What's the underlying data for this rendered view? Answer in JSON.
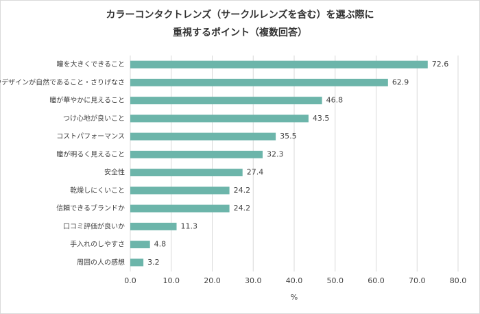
{
  "chart_data": {
    "type": "hbar",
    "title": [
      "カラーコンタクトレンズ（サークルレンズを含む）を選ぶ際に",
      "重視するポイント（複数回答）"
    ],
    "categories": [
      "瞳を大きくできること",
      "色やデザインが自然であること・さりげなさ",
      "瞳が華やかに見えること",
      "つけ心地が良いこと",
      "コストパフォーマンス",
      "瞳が明るく見えること",
      "安全性",
      "乾燥しにくいこと",
      "信頼できるブランドか",
      "口コミ評価が良いか",
      "手入れのしやすさ",
      "周囲の人の感想"
    ],
    "values": [
      72.6,
      62.9,
      46.8,
      43.5,
      35.5,
      32.3,
      27.4,
      24.2,
      24.2,
      11.3,
      4.8,
      3.2
    ],
    "color": "#6cb5aa",
    "xlabel": "%",
    "xlim": [
      0,
      80
    ],
    "xticks": [
      {
        "value": 0,
        "label": "0.0"
      },
      {
        "value": 10,
        "label": "10.0"
      },
      {
        "value": 20,
        "label": "20.0"
      },
      {
        "value": 30,
        "label": "30.0"
      },
      {
        "value": 40,
        "label": "40.0"
      },
      {
        "value": 50,
        "label": "50.0"
      },
      {
        "value": 60,
        "label": "60.0"
      },
      {
        "value": 70,
        "label": "70.0"
      },
      {
        "value": 80,
        "label": "80.0"
      }
    ],
    "grid": true
  }
}
